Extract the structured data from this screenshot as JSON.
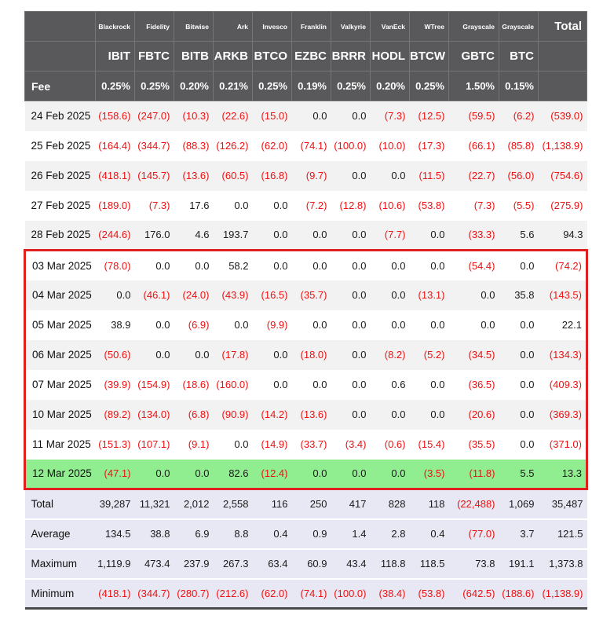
{
  "colors": {
    "header_bg": "#59595b",
    "negative": "#ee1111",
    "stripe_bg": "#f2f2f3",
    "summary_bg": "#e7e8f3",
    "highlight_bg": "#90ee90",
    "box_border": "#e02020",
    "bottom_border": "#4a4a4c"
  },
  "chart_data": {
    "type": "table",
    "title": "Bitcoin ETF daily flow table",
    "header": {
      "providers": [
        "Blackrock",
        "Fidelity",
        "Bitwise",
        "Ark",
        "Invesco",
        "Franklin",
        "Valkyrie",
        "VanEck",
        "WTree",
        "Grayscale",
        "Grayscale"
      ],
      "total_label": "Total",
      "tickers": [
        "IBIT",
        "FBTC",
        "BITB",
        "ARKB",
        "BTCO",
        "EZBC",
        "BRRR",
        "HODL",
        "BTCW",
        "GBTC",
        "BTC"
      ],
      "fee_label": "Fee",
      "fees": [
        "0.25%",
        "0.25%",
        "0.20%",
        "0.21%",
        "0.25%",
        "0.19%",
        "0.25%",
        "0.20%",
        "0.25%",
        "1.50%",
        "0.15%"
      ]
    },
    "rows": [
      {
        "date": "24 Feb 2025",
        "values": [
          "(158.6)",
          "(247.0)",
          "(10.3)",
          "(22.6)",
          "(15.0)",
          "0.0",
          "0.0",
          "(7.3)",
          "(12.5)",
          "(59.5)",
          "(6.2)",
          "(539.0)"
        ]
      },
      {
        "date": "25 Feb 2025",
        "values": [
          "(164.4)",
          "(344.7)",
          "(88.3)",
          "(126.2)",
          "(62.0)",
          "(74.1)",
          "(100.0)",
          "(10.0)",
          "(17.3)",
          "(66.1)",
          "(85.8)",
          "(1,138.9)"
        ]
      },
      {
        "date": "26 Feb 2025",
        "values": [
          "(418.1)",
          "(145.7)",
          "(13.6)",
          "(60.5)",
          "(16.8)",
          "(9.7)",
          "0.0",
          "0.0",
          "(11.5)",
          "(22.7)",
          "(56.0)",
          "(754.6)"
        ]
      },
      {
        "date": "27 Feb 2025",
        "values": [
          "(189.0)",
          "(7.3)",
          "17.6",
          "0.0",
          "0.0",
          "(7.2)",
          "(12.8)",
          "(10.6)",
          "(53.8)",
          "(7.3)",
          "(5.5)",
          "(275.9)"
        ]
      },
      {
        "date": "28 Feb 2025",
        "values": [
          "(244.6)",
          "176.0",
          "4.6",
          "193.7",
          "0.0",
          "0.0",
          "0.0",
          "(7.7)",
          "0.0",
          "(33.3)",
          "5.6",
          "94.3"
        ]
      },
      {
        "date": "03 Mar 2025",
        "values": [
          "(78.0)",
          "0.0",
          "0.0",
          "58.2",
          "0.0",
          "0.0",
          "0.0",
          "0.0",
          "0.0",
          "(54.4)",
          "0.0",
          "(74.2)"
        ]
      },
      {
        "date": "04 Mar 2025",
        "values": [
          "0.0",
          "(46.1)",
          "(24.0)",
          "(43.9)",
          "(16.5)",
          "(35.7)",
          "0.0",
          "0.0",
          "(13.1)",
          "0.0",
          "35.8",
          "(143.5)"
        ]
      },
      {
        "date": "05 Mar 2025",
        "values": [
          "38.9",
          "0.0",
          "(6.9)",
          "0.0",
          "(9.9)",
          "0.0",
          "0.0",
          "0.0",
          "0.0",
          "0.0",
          "0.0",
          "22.1"
        ]
      },
      {
        "date": "06 Mar 2025",
        "values": [
          "(50.6)",
          "0.0",
          "0.0",
          "(17.8)",
          "0.0",
          "(18.0)",
          "0.0",
          "(8.2)",
          "(5.2)",
          "(34.5)",
          "0.0",
          "(134.3)"
        ]
      },
      {
        "date": "07 Mar 2025",
        "values": [
          "(39.9)",
          "(154.9)",
          "(18.6)",
          "(160.0)",
          "0.0",
          "0.0",
          "0.0",
          "0.6",
          "0.0",
          "(36.5)",
          "0.0",
          "(409.3)"
        ]
      },
      {
        "date": "10 Mar 2025",
        "values": [
          "(89.2)",
          "(134.0)",
          "(6.8)",
          "(90.9)",
          "(14.2)",
          "(13.6)",
          "0.0",
          "0.0",
          "0.0",
          "(20.6)",
          "0.0",
          "(369.3)"
        ]
      },
      {
        "date": "11 Mar 2025",
        "values": [
          "(151.3)",
          "(107.1)",
          "(9.1)",
          "0.0",
          "(14.9)",
          "(33.7)",
          "(3.4)",
          "(0.6)",
          "(15.4)",
          "(35.5)",
          "0.0",
          "(371.0)"
        ]
      },
      {
        "date": "12 Mar 2025",
        "values": [
          "(47.1)",
          "0.0",
          "0.0",
          "82.6",
          "(12.4)",
          "0.0",
          "0.0",
          "0.0",
          "(3.5)",
          "(11.8)",
          "5.5",
          "13.3"
        ]
      }
    ],
    "summary": [
      {
        "label": "Total",
        "values": [
          "39,287",
          "11,321",
          "2,012",
          "2,558",
          "116",
          "250",
          "417",
          "828",
          "118",
          "(22,488)",
          "1,069",
          "35,487"
        ]
      },
      {
        "label": "Average",
        "values": [
          "134.5",
          "38.8",
          "6.9",
          "8.8",
          "0.4",
          "0.9",
          "1.4",
          "2.8",
          "0.4",
          "(77.0)",
          "3.7",
          "121.5"
        ]
      },
      {
        "label": "Maximum",
        "values": [
          "1,119.9",
          "473.4",
          "237.9",
          "267.3",
          "63.4",
          "60.9",
          "43.4",
          "118.8",
          "118.5",
          "73.8",
          "191.1",
          "1,373.8"
        ]
      },
      {
        "label": "Minimum",
        "values": [
          "(418.1)",
          "(344.7)",
          "(280.7)",
          "(212.6)",
          "(62.0)",
          "(74.1)",
          "(100.0)",
          "(38.4)",
          "(53.8)",
          "(642.5)",
          "(188.6)",
          "(1,138.9)"
        ]
      }
    ],
    "annotations": {
      "highlighted_row": "12 Mar 2025",
      "boxed_rows_start": "03 Mar 2025",
      "boxed_rows_end": "12 Mar 2025"
    }
  }
}
